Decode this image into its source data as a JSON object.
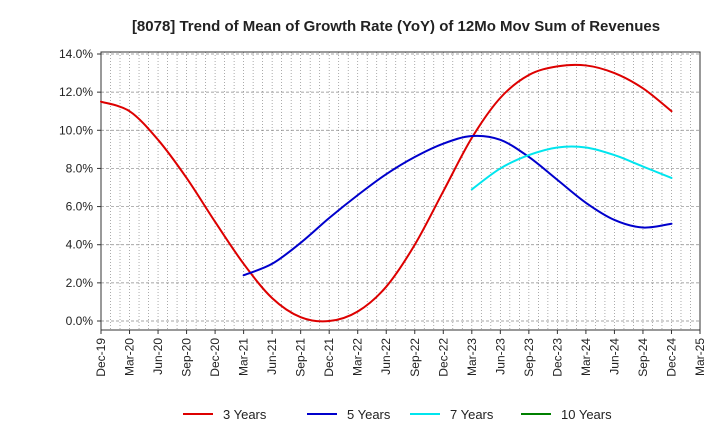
{
  "chart_data": {
    "type": "line",
    "title": "[8078]  Trend of Mean of Growth Rate (YoY) of 12Mo Mov Sum of Revenues",
    "xlabel": "",
    "ylabel": "",
    "ylim": [
      0,
      14
    ],
    "yticks": [
      "0.0%",
      "2.0%",
      "4.0%",
      "6.0%",
      "8.0%",
      "10.0%",
      "12.0%",
      "14.0%"
    ],
    "yticks_values": [
      0,
      2,
      4,
      6,
      8,
      10,
      12,
      14
    ],
    "xticks": [
      "Dec-19",
      "Mar-20",
      "Jun-20",
      "Sep-20",
      "Dec-20",
      "Mar-21",
      "Jun-21",
      "Sep-21",
      "Dec-21",
      "Mar-22",
      "Jun-22",
      "Sep-22",
      "Dec-22",
      "Mar-23",
      "Jun-23",
      "Sep-23",
      "Dec-23",
      "Mar-24",
      "Jun-24",
      "Sep-24",
      "Dec-24",
      "Mar-25"
    ],
    "grid": true,
    "legend_position": "bottom",
    "series": [
      {
        "name": "3 Years",
        "color": "#dd0000",
        "x": [
          0,
          1,
          2,
          3,
          4,
          5,
          6,
          7,
          8,
          9,
          10,
          11,
          12,
          13,
          14,
          15,
          16,
          17,
          18,
          19,
          20
        ],
        "values": [
          11.5,
          11.0,
          9.5,
          7.5,
          5.2,
          3.0,
          1.2,
          0.2,
          0.0,
          0.5,
          1.8,
          4.0,
          6.8,
          9.6,
          11.7,
          12.9,
          13.35,
          13.4,
          13.0,
          12.2,
          11.0
        ]
      },
      {
        "name": "5 Years",
        "color": "#0000cc",
        "x": [
          5,
          6,
          7,
          8,
          9,
          10,
          11,
          12,
          13,
          14,
          15,
          16,
          17,
          18,
          19,
          20
        ],
        "values": [
          2.4,
          3.0,
          4.1,
          5.4,
          6.6,
          7.7,
          8.6,
          9.3,
          9.7,
          9.5,
          8.6,
          7.4,
          6.2,
          5.3,
          4.9,
          5.1
        ]
      },
      {
        "name": "7 Years",
        "color": "#00e5ee",
        "x": [
          13,
          14,
          15,
          16,
          17,
          18,
          19,
          20
        ],
        "values": [
          6.9,
          8.0,
          8.7,
          9.1,
          9.1,
          8.7,
          8.1,
          7.5
        ]
      },
      {
        "name": "10 Years",
        "color": "#008000",
        "x": [],
        "values": []
      }
    ]
  }
}
